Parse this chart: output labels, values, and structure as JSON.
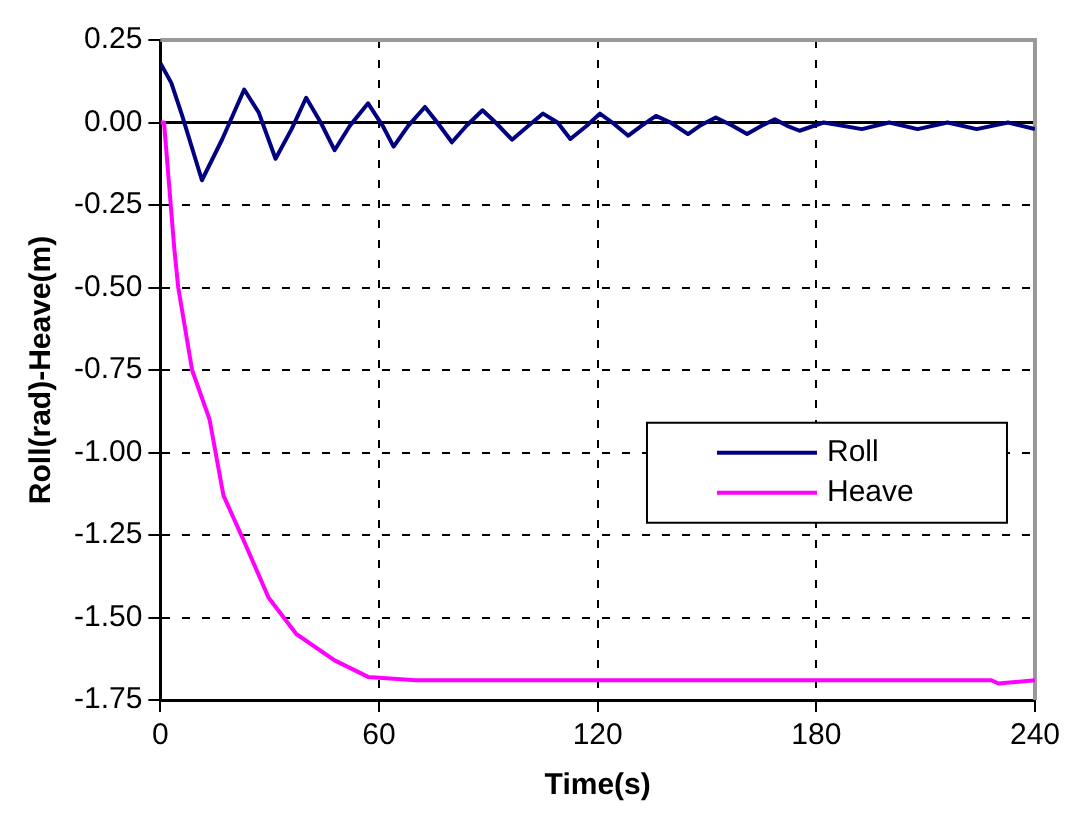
{
  "chart_data": {
    "type": "line",
    "xlabel": "Time(s)",
    "ylabel": "Roll(rad)-Heave(m)",
    "xlim": [
      0,
      240
    ],
    "xticks": [
      0,
      60,
      120,
      180,
      240
    ],
    "ylim": [
      -1.75,
      0.25
    ],
    "yticks": [
      {
        "value": 0.25,
        "label": "0.25"
      },
      {
        "value": 0,
        "label": "0.00"
      },
      {
        "value": -0.25,
        "label": "-0.25"
      },
      {
        "value": -0.5,
        "label": "-0.50"
      },
      {
        "value": -0.75,
        "label": "-0.75"
      },
      {
        "value": -1,
        "label": "-1.00"
      },
      {
        "value": -1.25,
        "label": "-1.25"
      },
      {
        "value": -1.5,
        "label": "-1.50"
      },
      {
        "value": -1.75,
        "label": "-1.75"
      }
    ],
    "grid": true,
    "legend": "right",
    "ref_lines": [
      {
        "axis": "y",
        "value": 0,
        "color": "#000000"
      }
    ],
    "series": [
      {
        "name": "Roll",
        "color": "#000080",
        "x": [
          0,
          3,
          6,
          11.4,
          17,
          23,
          27,
          31.6,
          36,
          40,
          44,
          47.8,
          52,
          57,
          61,
          64,
          68,
          72.6,
          76,
          80,
          84,
          88.4,
          92,
          96.5,
          101,
          105,
          109,
          112.5,
          117,
          120.6,
          124,
          128.4,
          132,
          136,
          140,
          144.8,
          148,
          152.4,
          157,
          161,
          165,
          168.6,
          172,
          175.4,
          182,
          192.5,
          200,
          207.8,
          216,
          224,
          232.6,
          240
        ],
        "values": [
          0.18,
          0.12,
          0.02,
          -0.175,
          -0.05,
          0.1,
          0.03,
          -0.11,
          -0.02,
          0.075,
          0.0,
          -0.084,
          -0.01,
          0.058,
          -0.01,
          -0.073,
          -0.01,
          0.047,
          0.0,
          -0.06,
          -0.01,
          0.037,
          0.0,
          -0.052,
          -0.01,
          0.027,
          0.0,
          -0.05,
          -0.01,
          0.027,
          0.0,
          -0.04,
          -0.01,
          0.02,
          0.0,
          -0.035,
          -0.01,
          0.015,
          -0.01,
          -0.035,
          -0.01,
          0.01,
          -0.01,
          -0.025,
          0.0,
          -0.02,
          0.0,
          -0.02,
          0.0,
          -0.02,
          0.0,
          -0.02
        ]
      },
      {
        "name": "Heave",
        "color": "#ff00ff",
        "x": [
          0,
          1,
          2.7,
          3.8,
          4.9,
          8.7,
          13.5,
          17.3,
          23,
          29.7,
          37.3,
          47.8,
          57,
          70,
          85,
          120,
          180,
          228,
          230,
          240
        ],
        "values": [
          0,
          0,
          -0.23,
          -0.38,
          -0.5,
          -0.75,
          -0.9,
          -1.13,
          -1.27,
          -1.44,
          -1.55,
          -1.63,
          -1.68,
          -1.69,
          -1.69,
          -1.69,
          -1.69,
          -1.69,
          -1.7,
          -1.69
        ]
      }
    ]
  }
}
